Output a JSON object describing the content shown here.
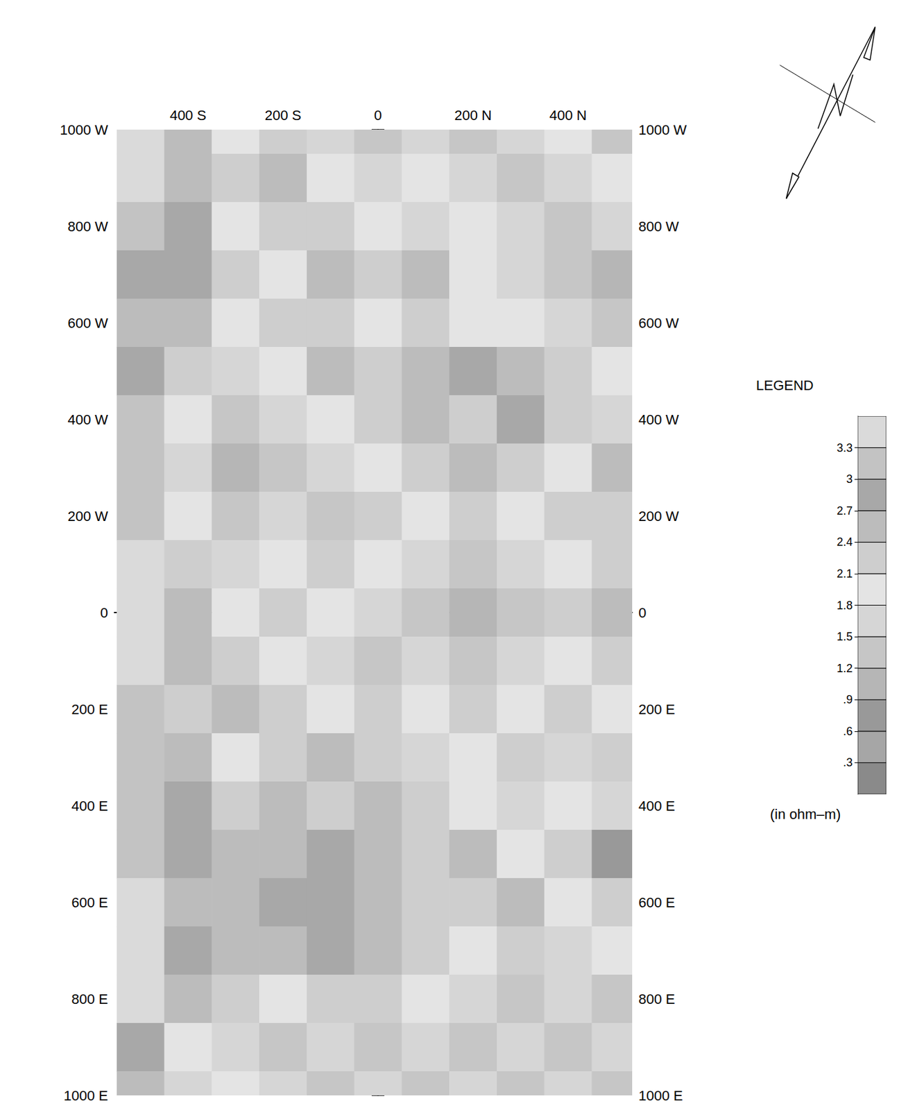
{
  "chart_data": {
    "type": "contour",
    "x": [
      -500,
      -400,
      -300,
      -200,
      -100,
      0,
      100,
      200,
      300,
      400,
      500
    ],
    "y": [
      1000,
      900,
      800,
      700,
      600,
      500,
      400,
      300,
      200,
      100,
      0,
      -100,
      -200,
      -300,
      -400,
      -500,
      -600,
      -700,
      -800,
      -900,
      -1000
    ],
    "cells": [
      [
        3.3,
        2.4,
        1.8,
        2.1,
        1.5,
        1.2,
        1.5,
        1.2,
        1.5,
        1.8,
        1.2
      ],
      [
        3.3,
        2.4,
        2.1,
        2.4,
        1.8,
        1.5,
        1.8,
        1.5,
        1.2,
        1.5,
        1.8
      ],
      [
        3.0,
        2.7,
        1.8,
        2.1,
        2.1,
        1.8,
        1.5,
        1.8,
        1.5,
        1.2,
        1.5
      ],
      [
        2.7,
        2.7,
        2.1,
        1.8,
        2.4,
        2.1,
        2.4,
        1.8,
        1.5,
        1.2,
        0.9
      ],
      [
        2.4,
        2.4,
        1.8,
        2.1,
        2.1,
        1.8,
        2.1,
        1.8,
        1.8,
        1.5,
        1.2
      ],
      [
        2.7,
        2.1,
        1.5,
        1.8,
        2.4,
        2.1,
        2.4,
        2.7,
        2.4,
        2.1,
        1.8
      ],
      [
        3.0,
        1.8,
        1.2,
        1.5,
        1.8,
        2.1,
        2.4,
        2.1,
        2.7,
        2.1,
        1.5
      ],
      [
        3.0,
        1.5,
        0.9,
        1.2,
        1.5,
        1.8,
        2.1,
        2.4,
        2.1,
        1.8,
        2.4
      ],
      [
        3.0,
        1.8,
        1.2,
        1.5,
        1.2,
        2.1,
        1.8,
        2.1,
        1.8,
        2.1,
        2.1
      ],
      [
        3.3,
        2.1,
        1.5,
        1.8,
        2.1,
        1.8,
        1.5,
        1.2,
        1.5,
        1.8,
        2.1
      ],
      [
        3.3,
        2.4,
        1.8,
        2.1,
        1.8,
        1.5,
        1.2,
        0.9,
        1.2,
        2.1,
        2.4
      ],
      [
        3.3,
        2.4,
        2.1,
        1.8,
        1.5,
        1.2,
        1.5,
        1.2,
        1.5,
        1.8,
        2.1
      ],
      [
        3.0,
        2.1,
        2.4,
        2.1,
        1.8,
        2.1,
        1.8,
        2.1,
        1.8,
        2.1,
        1.8
      ],
      [
        3.0,
        2.4,
        1.8,
        2.1,
        2.4,
        2.1,
        1.5,
        1.8,
        2.1,
        1.5,
        2.1
      ],
      [
        3.0,
        2.7,
        2.1,
        2.4,
        2.1,
        2.4,
        2.1,
        1.8,
        1.5,
        1.8,
        1.5
      ],
      [
        3.0,
        2.7,
        2.4,
        2.4,
        2.7,
        2.4,
        2.1,
        2.4,
        1.8,
        2.1,
        0.6
      ],
      [
        3.3,
        2.4,
        2.4,
        2.7,
        2.7,
        2.4,
        2.1,
        2.1,
        2.4,
        1.8,
        2.1
      ],
      [
        3.3,
        2.7,
        2.4,
        2.4,
        2.7,
        2.4,
        2.1,
        1.8,
        2.1,
        1.5,
        1.8
      ],
      [
        3.6,
        2.4,
        2.1,
        1.8,
        2.1,
        2.1,
        1.8,
        1.5,
        1.2,
        1.5,
        1.2
      ],
      [
        2.7,
        1.8,
        1.5,
        1.2,
        1.5,
        1.2,
        1.5,
        1.2,
        1.5,
        1.2,
        1.5
      ],
      [
        2.4,
        1.5,
        1.8,
        1.5,
        1.2,
        1.5,
        1.2,
        1.5,
        1.2,
        1.5,
        1.2
      ]
    ],
    "xlim": [
      -555,
      535
    ],
    "xticks": [
      {
        "value": -400,
        "label": "400 S"
      },
      {
        "value": -200,
        "label": "200 S"
      },
      0,
      {
        "value": 200,
        "label": "200 N"
      },
      {
        "value": 400,
        "label": "400 N"
      }
    ],
    "ylim": [
      -1000,
      1000
    ],
    "yticks": [
      {
        "value": 1000,
        "label": "1000 W"
      },
      {
        "value": 800,
        "label": "800 W"
      },
      {
        "value": 600,
        "label": "600 W"
      },
      {
        "value": 400,
        "label": "400 W"
      },
      {
        "value": 200,
        "label": "200 W"
      },
      0,
      {
        "value": -200,
        "label": "200 E"
      },
      {
        "value": -400,
        "label": "400 E"
      },
      {
        "value": -600,
        "label": "600 E"
      },
      {
        "value": -800,
        "label": "800 E"
      },
      {
        "value": -1000,
        "label": "1000 E"
      }
    ],
    "colorbar": {
      "title": "LEGEND",
      "label": "(in ohm–m)",
      "range": [
        0,
        3.6
      ],
      "ticks": [
        {
          "value": 0.3,
          "label": ".3"
        },
        {
          "value": 0.6,
          "label": ".6"
        },
        {
          "value": 0.9,
          "label": ".9"
        },
        1.2,
        1.5,
        1.8,
        2.1,
        2.4,
        2.7,
        3,
        3.3
      ]
    }
  }
}
